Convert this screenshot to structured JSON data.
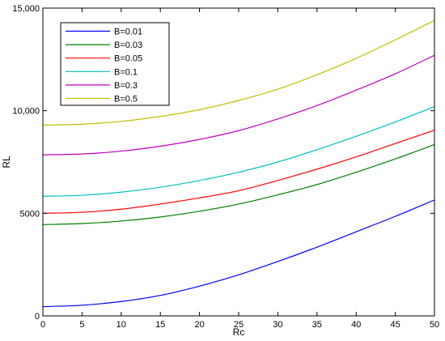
{
  "chart_data": {
    "type": "line",
    "title": "",
    "xlabel": "Rc",
    "ylabel": "RL",
    "xlim": [
      0,
      50
    ],
    "ylim": [
      0,
      15000
    ],
    "x_ticks": [
      0,
      5,
      10,
      15,
      20,
      25,
      30,
      35,
      40,
      45,
      50
    ],
    "x_tick_labels": [
      "0",
      "5",
      "10",
      "15",
      "20",
      "25",
      "30",
      "35",
      "40",
      "45",
      "50"
    ],
    "y_ticks": [
      0,
      5000,
      10000,
      15000
    ],
    "y_tick_labels": [
      "0",
      "5000",
      "10,000",
      "15,000"
    ],
    "grid": false,
    "legend_position": "top-left",
    "x": [
      0,
      5,
      10,
      15,
      20,
      25,
      30,
      35,
      40,
      45,
      50
    ],
    "series": [
      {
        "name": "B=0.01",
        "color": "#0000ff",
        "values": [
          450,
          520,
          700,
          1000,
          1450,
          2000,
          2650,
          3350,
          4100,
          4850,
          5650
        ]
      },
      {
        "name": "B=0.03",
        "color": "#008000",
        "values": [
          4450,
          4500,
          4620,
          4820,
          5100,
          5450,
          5900,
          6400,
          7000,
          7650,
          8350
        ]
      },
      {
        "name": "B=0.05",
        "color": "#ff0000",
        "values": [
          5000,
          5050,
          5200,
          5450,
          5750,
          6100,
          6600,
          7150,
          7750,
          8400,
          9050
        ]
      },
      {
        "name": "B=0.1",
        "color": "#00bfbf",
        "values": [
          5830,
          5880,
          6030,
          6270,
          6600,
          7000,
          7500,
          8100,
          8750,
          9450,
          10200
        ]
      },
      {
        "name": "B=0.3",
        "color": "#bf00bf",
        "values": [
          7850,
          7890,
          8030,
          8270,
          8600,
          9030,
          9600,
          10250,
          11000,
          11800,
          12700
        ]
      },
      {
        "name": "B=0.5",
        "color": "#bfbf00",
        "values": [
          9300,
          9340,
          9480,
          9720,
          10050,
          10500,
          11050,
          11750,
          12550,
          13450,
          14400
        ]
      }
    ]
  }
}
